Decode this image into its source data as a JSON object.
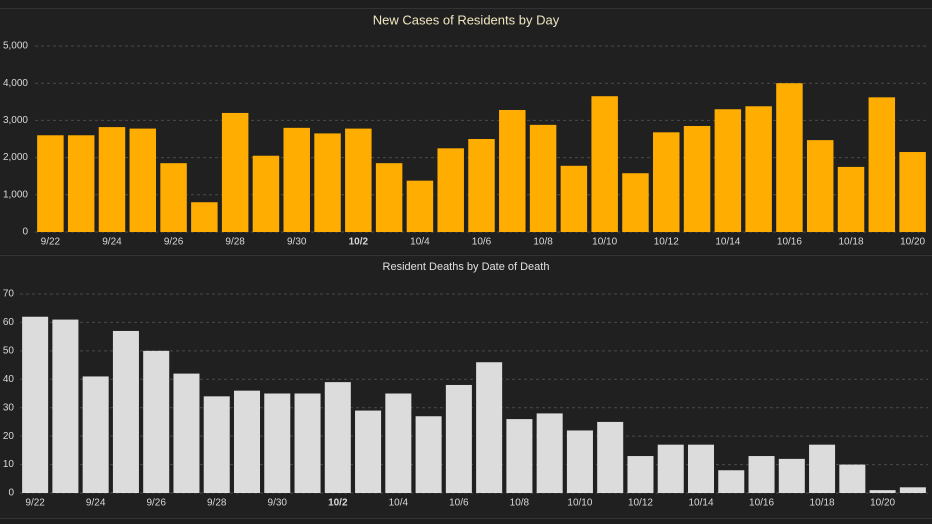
{
  "chart_data": [
    {
      "type": "bar",
      "title": "New Cases of Residents by Day",
      "categories": [
        "9/22",
        null,
        "9/24",
        null,
        "9/26",
        null,
        "9/28",
        null,
        "9/30",
        null,
        "10/2",
        null,
        "10/4",
        null,
        "10/6",
        null,
        "10/8",
        null,
        "10/10",
        null,
        "10/12",
        null,
        "10/14",
        null,
        "10/16",
        null,
        "10/18",
        null,
        "10/20"
      ],
      "values": [
        2600,
        2600,
        2820,
        2780,
        1850,
        800,
        3200,
        2050,
        2800,
        2650,
        2780,
        1850,
        1380,
        2250,
        2500,
        3280,
        2880,
        1780,
        3650,
        1580,
        2680,
        2850,
        3300,
        3380,
        4000,
        2470,
        1750,
        3620,
        2150
      ],
      "color": "#ffad00",
      "ylim": [
        0,
        5000
      ],
      "yticks": [
        0,
        {
          "value": 1000,
          "label": "1,000"
        },
        {
          "value": 2000,
          "label": "2,000"
        },
        {
          "value": 3000,
          "label": "3,000"
        },
        {
          "value": 4000,
          "label": "4,000"
        },
        {
          "value": 5000,
          "label": "5,000"
        }
      ],
      "grid": true
    },
    {
      "type": "bar",
      "title": "Resident Deaths by Date of Death",
      "categories": [
        "9/22",
        null,
        "9/24",
        null,
        "9/26",
        null,
        "9/28",
        null,
        "9/30",
        null,
        "10/2",
        null,
        "10/4",
        null,
        "10/6",
        null,
        "10/8",
        null,
        "10/10",
        null,
        "10/12",
        null,
        "10/14",
        null,
        "10/16",
        null,
        "10/18",
        null,
        "10/20",
        null
      ],
      "values": [
        62,
        61,
        41,
        57,
        50,
        42,
        34,
        36,
        35,
        35,
        39,
        29,
        35,
        27,
        38,
        46,
        26,
        28,
        22,
        25,
        13,
        17,
        17,
        8,
        13,
        12,
        17,
        10,
        1,
        2
      ],
      "color": "#dcdcdc",
      "ylim": [
        0,
        70
      ],
      "yticks": [
        0,
        10,
        20,
        30,
        40,
        50,
        60,
        70
      ],
      "grid": true
    }
  ]
}
